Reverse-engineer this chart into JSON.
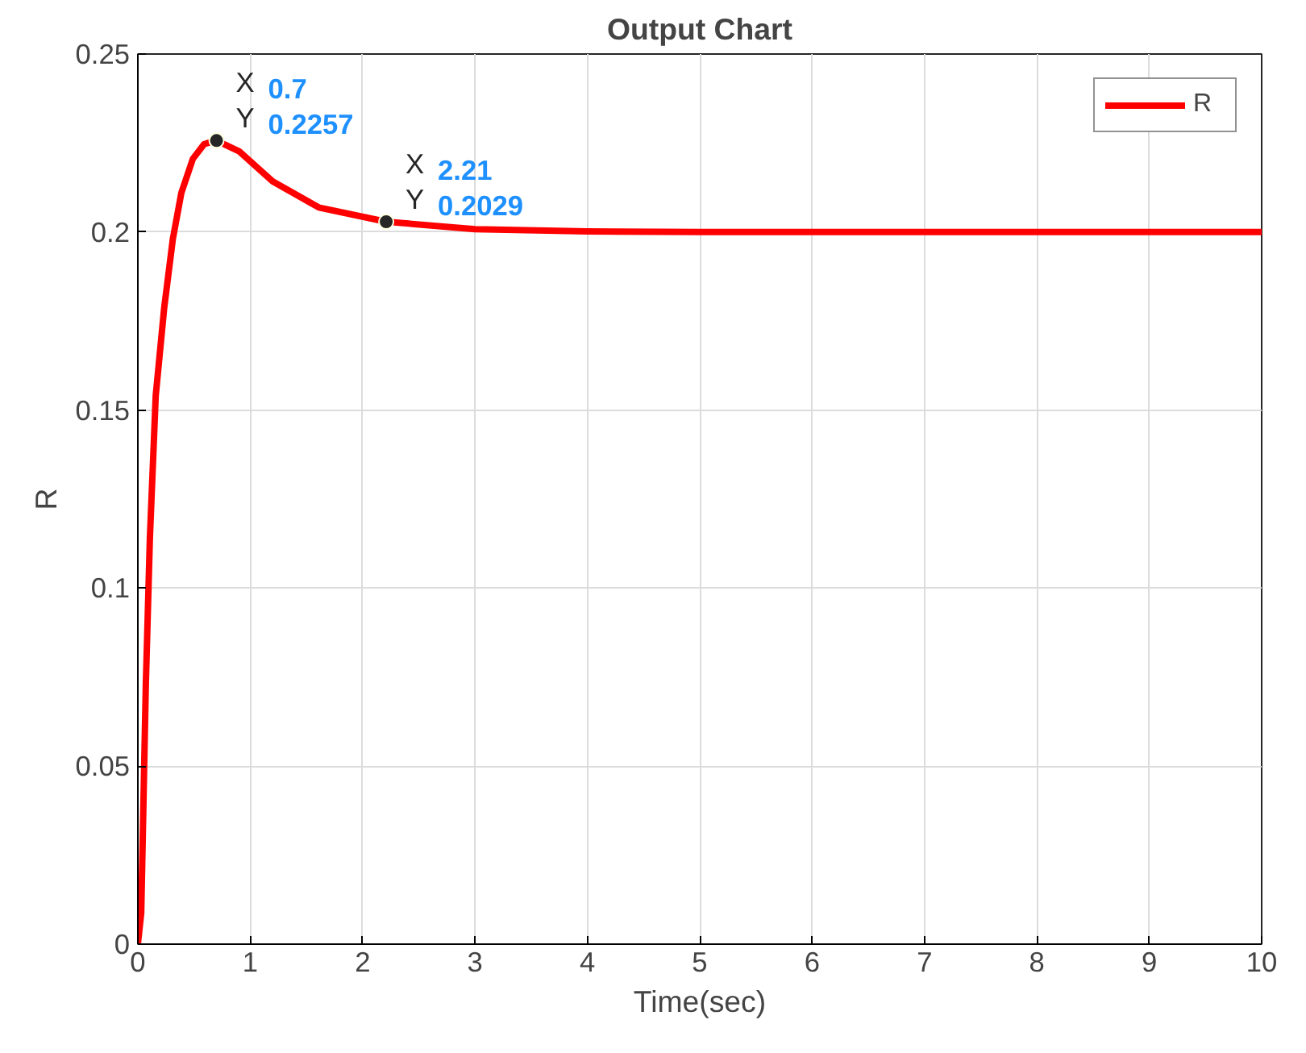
{
  "chart_data": {
    "type": "line",
    "title": "Output Chart",
    "xlabel": "Time(sec)",
    "ylabel": "R",
    "series": [
      {
        "name": "R",
        "color": "#ff0000",
        "x": [
          0,
          0.03,
          0.071,
          0.107,
          0.159,
          0.234,
          0.311,
          0.387,
          0.49,
          0.59,
          0.7,
          0.9,
          1.2,
          1.61,
          2.21,
          3,
          4,
          5,
          6,
          7,
          8,
          9,
          10
        ],
        "values": [
          0,
          0.0087,
          0.073,
          0.114,
          0.154,
          0.1786,
          0.198,
          0.211,
          0.2206,
          0.2247,
          0.2257,
          0.2227,
          0.2142,
          0.2069,
          0.2029,
          0.2008,
          0.2002,
          0.2,
          0.2,
          0.2,
          0.2,
          0.2,
          0.2
        ]
      }
    ],
    "xlim": [
      0,
      10
    ],
    "xticks": [
      0,
      1,
      2,
      3,
      4,
      5,
      6,
      7,
      8,
      9,
      10
    ],
    "ylim": [
      0,
      0.25
    ],
    "yticks": [
      0,
      0.05,
      0.1,
      0.15,
      0.2,
      0.25
    ],
    "grid": true,
    "legend": "top right",
    "marker": "none",
    "line_style": "solid",
    "annotations": [
      {
        "text": "X 0.7\nY 0.2257",
        "x": 0.7,
        "y": 0.2257
      },
      {
        "text": "X 2.21\nY 0.2029",
        "x": 2.21,
        "y": 0.2029
      }
    ]
  }
}
